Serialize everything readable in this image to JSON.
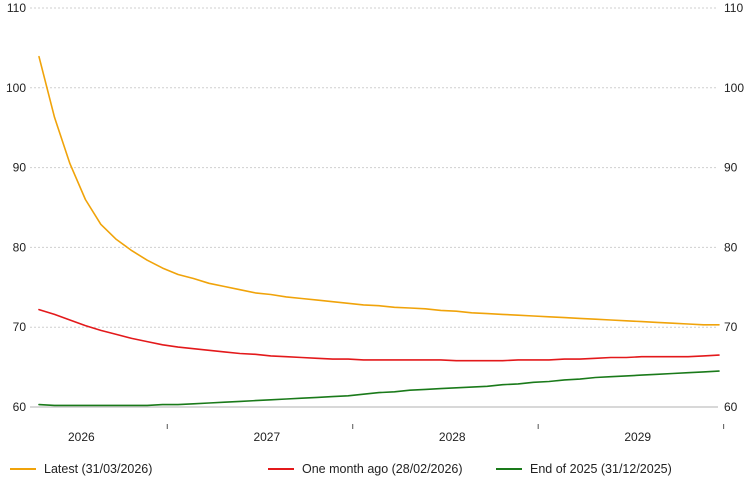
{
  "chart_data": {
    "type": "line",
    "title": "",
    "xlabel": "",
    "ylabel": "",
    "ylim": [
      60,
      110
    ],
    "yticks": [
      60,
      70,
      80,
      90,
      100,
      110
    ],
    "ytick_labels": [
      "60",
      "70",
      "80",
      "90",
      "100",
      "110"
    ],
    "grid": "horizontal dashed",
    "legend_position": "bottom",
    "x_range": [
      "2026-04",
      "2029-12"
    ],
    "year_labels": [
      {
        "label": "2026",
        "center": "2026-07"
      },
      {
        "label": "2027",
        "center": "2027-07"
      },
      {
        "label": "2028",
        "center": "2028-07"
      },
      {
        "label": "2029",
        "center": "2029-07"
      }
    ],
    "year_separators": [
      "2027-01",
      "2028-01",
      "2029-01",
      "2030-01"
    ],
    "series": [
      {
        "name": "Latest (31/03/2026)",
        "color": "#f0a30a",
        "points": [
          [
            "2026-04",
            103.9
          ],
          [
            "2026-05",
            96.3
          ],
          [
            "2026-06",
            90.5
          ],
          [
            "2026-07",
            86.0
          ],
          [
            "2026-08",
            82.9
          ],
          [
            "2026-09",
            81.0
          ],
          [
            "2026-10",
            79.6
          ],
          [
            "2026-11",
            78.4
          ],
          [
            "2026-12",
            77.4
          ],
          [
            "2027-01",
            76.6
          ],
          [
            "2027-02",
            76.1
          ],
          [
            "2027-03",
            75.5
          ],
          [
            "2027-04",
            75.1
          ],
          [
            "2027-05",
            74.7
          ],
          [
            "2027-06",
            74.3
          ],
          [
            "2027-07",
            74.1
          ],
          [
            "2027-08",
            73.8
          ],
          [
            "2027-09",
            73.6
          ],
          [
            "2027-10",
            73.4
          ],
          [
            "2027-11",
            73.2
          ],
          [
            "2027-12",
            73.0
          ],
          [
            "2028-01",
            72.8
          ],
          [
            "2028-02",
            72.7
          ],
          [
            "2028-03",
            72.5
          ],
          [
            "2028-04",
            72.4
          ],
          [
            "2028-05",
            72.3
          ],
          [
            "2028-06",
            72.1
          ],
          [
            "2028-07",
            72.0
          ],
          [
            "2028-08",
            71.8
          ],
          [
            "2028-09",
            71.7
          ],
          [
            "2028-10",
            71.6
          ],
          [
            "2028-11",
            71.5
          ],
          [
            "2028-12",
            71.4
          ],
          [
            "2029-01",
            71.3
          ],
          [
            "2029-02",
            71.2
          ],
          [
            "2029-03",
            71.1
          ],
          [
            "2029-04",
            71.0
          ],
          [
            "2029-05",
            70.9
          ],
          [
            "2029-06",
            70.8
          ],
          [
            "2029-07",
            70.7
          ],
          [
            "2029-08",
            70.6
          ],
          [
            "2029-09",
            70.5
          ],
          [
            "2029-10",
            70.4
          ],
          [
            "2029-11",
            70.3
          ],
          [
            "2029-12",
            70.3
          ]
        ]
      },
      {
        "name": "One month ago (28/02/2026)",
        "color": "#e3191b",
        "points": [
          [
            "2026-04",
            72.2
          ],
          [
            "2026-05",
            71.6
          ],
          [
            "2026-06",
            70.9
          ],
          [
            "2026-07",
            70.2
          ],
          [
            "2026-08",
            69.6
          ],
          [
            "2026-09",
            69.1
          ],
          [
            "2026-10",
            68.6
          ],
          [
            "2026-11",
            68.2
          ],
          [
            "2026-12",
            67.8
          ],
          [
            "2027-01",
            67.5
          ],
          [
            "2027-02",
            67.3
          ],
          [
            "2027-03",
            67.1
          ],
          [
            "2027-04",
            66.9
          ],
          [
            "2027-05",
            66.7
          ],
          [
            "2027-06",
            66.6
          ],
          [
            "2027-07",
            66.4
          ],
          [
            "2027-08",
            66.3
          ],
          [
            "2027-09",
            66.2
          ],
          [
            "2027-10",
            66.1
          ],
          [
            "2027-11",
            66.0
          ],
          [
            "2027-12",
            66.0
          ],
          [
            "2028-01",
            65.9
          ],
          [
            "2028-02",
            65.9
          ],
          [
            "2028-03",
            65.9
          ],
          [
            "2028-04",
            65.9
          ],
          [
            "2028-05",
            65.9
          ],
          [
            "2028-06",
            65.9
          ],
          [
            "2028-07",
            65.8
          ],
          [
            "2028-08",
            65.8
          ],
          [
            "2028-09",
            65.8
          ],
          [
            "2028-10",
            65.8
          ],
          [
            "2028-11",
            65.9
          ],
          [
            "2028-12",
            65.9
          ],
          [
            "2029-01",
            65.9
          ],
          [
            "2029-02",
            66.0
          ],
          [
            "2029-03",
            66.0
          ],
          [
            "2029-04",
            66.1
          ],
          [
            "2029-05",
            66.2
          ],
          [
            "2029-06",
            66.2
          ],
          [
            "2029-07",
            66.3
          ],
          [
            "2029-08",
            66.3
          ],
          [
            "2029-09",
            66.3
          ],
          [
            "2029-10",
            66.3
          ],
          [
            "2029-11",
            66.4
          ],
          [
            "2029-12",
            66.5
          ]
        ]
      },
      {
        "name": "End of 2025 (31/12/2025)",
        "color": "#1a7a1a",
        "points": [
          [
            "2026-04",
            60.3
          ],
          [
            "2026-05",
            60.2
          ],
          [
            "2026-06",
            60.2
          ],
          [
            "2026-07",
            60.2
          ],
          [
            "2026-08",
            60.2
          ],
          [
            "2026-09",
            60.2
          ],
          [
            "2026-10",
            60.2
          ],
          [
            "2026-11",
            60.2
          ],
          [
            "2026-12",
            60.3
          ],
          [
            "2027-01",
            60.3
          ],
          [
            "2027-02",
            60.4
          ],
          [
            "2027-03",
            60.5
          ],
          [
            "2027-04",
            60.6
          ],
          [
            "2027-05",
            60.7
          ],
          [
            "2027-06",
            60.8
          ],
          [
            "2027-07",
            60.9
          ],
          [
            "2027-08",
            61.0
          ],
          [
            "2027-09",
            61.1
          ],
          [
            "2027-10",
            61.2
          ],
          [
            "2027-11",
            61.3
          ],
          [
            "2027-12",
            61.4
          ],
          [
            "2028-01",
            61.6
          ],
          [
            "2028-02",
            61.8
          ],
          [
            "2028-03",
            61.9
          ],
          [
            "2028-04",
            62.1
          ],
          [
            "2028-05",
            62.2
          ],
          [
            "2028-06",
            62.3
          ],
          [
            "2028-07",
            62.4
          ],
          [
            "2028-08",
            62.5
          ],
          [
            "2028-09",
            62.6
          ],
          [
            "2028-10",
            62.8
          ],
          [
            "2028-11",
            62.9
          ],
          [
            "2028-12",
            63.1
          ],
          [
            "2029-01",
            63.2
          ],
          [
            "2029-02",
            63.4
          ],
          [
            "2029-03",
            63.5
          ],
          [
            "2029-04",
            63.7
          ],
          [
            "2029-05",
            63.8
          ],
          [
            "2029-06",
            63.9
          ],
          [
            "2029-07",
            64.0
          ],
          [
            "2029-08",
            64.1
          ],
          [
            "2029-09",
            64.2
          ],
          [
            "2029-10",
            64.3
          ],
          [
            "2029-11",
            64.4
          ],
          [
            "2029-12",
            64.5
          ]
        ]
      }
    ]
  }
}
